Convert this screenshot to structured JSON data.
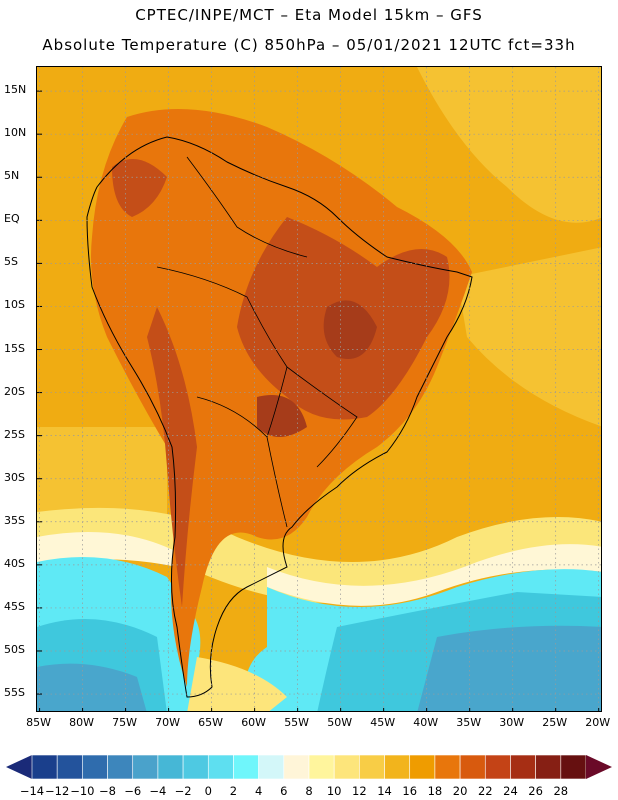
{
  "header": {
    "line1": "CPTEC/INPE/MCT –  Eta Model 15km – GFS",
    "line2": "Absolute Temperature (C) 850hPa – 05/01/2021 12UTC fct=33h"
  },
  "map": {
    "lat_labels": [
      "15N",
      "10N",
      "5N",
      "EQ",
      "5S",
      "10S",
      "15S",
      "20S",
      "25S",
      "30S",
      "35S",
      "40S",
      "45S",
      "50S",
      "55S"
    ],
    "lat_values": [
      15,
      10,
      5,
      0,
      -5,
      -10,
      -15,
      -20,
      -25,
      -30,
      -35,
      -40,
      -45,
      -50,
      -55
    ],
    "lon_labels": [
      "85W",
      "80W",
      "75W",
      "70W",
      "65W",
      "60W",
      "55W",
      "50W",
      "45W",
      "40W",
      "35W",
      "30W",
      "25W",
      "20W"
    ],
    "lon_values": [
      -85,
      -80,
      -75,
      -70,
      -65,
      -60,
      -55,
      -50,
      -45,
      -40,
      -35,
      -30,
      -25,
      -20
    ],
    "lat_range": [
      -57.2,
      17.8
    ],
    "lon_range": [
      -85.3,
      -19.5
    ],
    "field_colors": {
      "ocean_warm": "#f0ac12",
      "ocean_mid": "#f5c232",
      "land_warm": "#e8760c",
      "hot_core": "#c44e18",
      "hottest": "#a63c1a",
      "cool_band": "#fbe67a",
      "pale": "#fff7d6",
      "cyan": "#5fe9f5",
      "aqua": "#3fc8dd",
      "deep_blue": "#49a6cc"
    }
  },
  "colorbar": {
    "labels": [
      "-14",
      "-12",
      "-10",
      "-8",
      "-6",
      "-4",
      "-2",
      "0",
      "2",
      "4",
      "6",
      "8",
      "10",
      "12",
      "14",
      "16",
      "18",
      "20",
      "22",
      "24",
      "26",
      "28"
    ],
    "colors": [
      "#1a3f8c",
      "#23539c",
      "#2f6cad",
      "#3d86bc",
      "#4aa2cb",
      "#46b7d6",
      "#4ec9e2",
      "#5edff0",
      "#6ff6fb",
      "#d3f7f9",
      "#fff5d8",
      "#fff59d",
      "#fde57b",
      "#f8cd46",
      "#f2b41c",
      "#ef9c00",
      "#e8760c",
      "#d85a0e",
      "#c44316",
      "#a62e14",
      "#861f14",
      "#661010"
    ],
    "arrow_left_color": "#1a2a78",
    "arrow_right_color": "#6a0a28"
  }
}
